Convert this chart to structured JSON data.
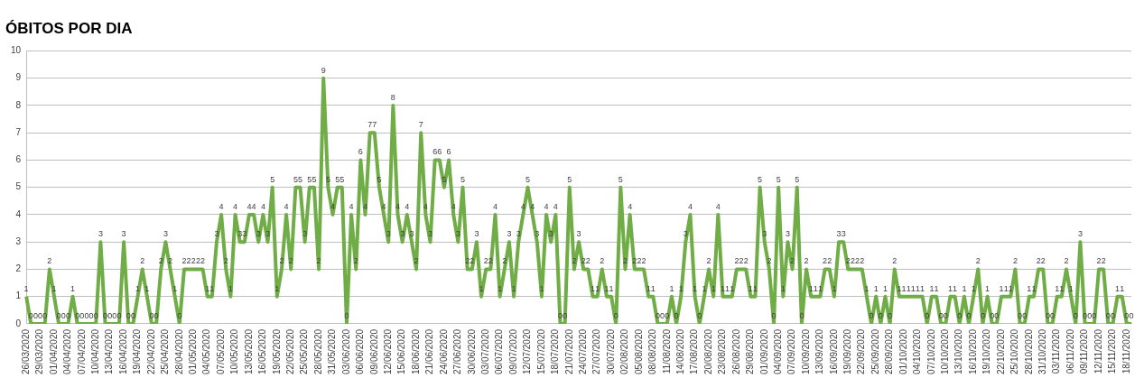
{
  "chart_data": {
    "type": "line",
    "title": "ÓBITOS POR DIA",
    "categories": [
      "26/03/2020",
      null,
      null,
      "29/03/2020",
      null,
      null,
      "01/04/2020",
      null,
      null,
      "04/04/2020",
      null,
      null,
      "07/04/2020",
      null,
      null,
      "10/04/2020",
      null,
      null,
      "13/04/2020",
      null,
      null,
      "16/04/2020",
      null,
      null,
      "19/04/2020",
      null,
      null,
      "22/04/2020",
      null,
      null,
      "25/04/2020",
      null,
      null,
      "28/04/2020",
      null,
      null,
      "01/05/2020",
      null,
      null,
      "04/05/2020",
      null,
      null,
      "07/05/2020",
      null,
      null,
      "10/05/2020",
      null,
      null,
      "13/05/2020",
      null,
      null,
      "16/05/2020",
      null,
      null,
      "19/05/2020",
      null,
      null,
      "22/05/2020",
      null,
      null,
      "25/05/2020",
      null,
      null,
      "28/05/2020",
      null,
      null,
      "31/05/2020",
      null,
      null,
      "03/06/2020",
      null,
      null,
      "06/06/2020",
      null,
      null,
      "09/06/2020",
      null,
      null,
      "12/06/2020",
      null,
      null,
      "15/06/2020",
      null,
      null,
      "18/06/2020",
      null,
      null,
      "21/06/2020",
      null,
      null,
      "24/06/2020",
      null,
      null,
      "27/06/2020",
      null,
      null,
      "30/06/2020",
      null,
      null,
      "03/07/2020",
      null,
      null,
      "06/07/2020",
      null,
      null,
      "09/07/2020",
      null,
      null,
      "12/07/2020",
      null,
      null,
      "15/07/2020",
      null,
      null,
      "18/07/2020",
      null,
      null,
      "21/07/2020",
      null,
      null,
      "24/07/2020",
      null,
      null,
      "27/07/2020",
      null,
      null,
      "30/07/2020",
      null,
      null,
      "02/08/2020",
      null,
      null,
      "05/08/2020",
      null,
      null,
      "08/08/2020",
      null,
      null,
      "11/08/2020",
      null,
      null,
      "14/08/2020",
      null,
      null,
      "17/08/2020",
      null,
      null,
      "20/08/2020",
      null,
      null,
      "23/08/2020",
      null,
      null,
      "26/08/2020",
      null,
      null,
      "29/08/2020",
      null,
      null,
      "01/09/2020",
      null,
      null,
      "04/09/2020",
      null,
      null,
      "07/09/2020",
      null,
      null,
      "10/09/2020",
      null,
      null,
      "13/09/2020",
      null,
      null,
      "16/09/2020",
      null,
      null,
      "19/09/2020",
      null,
      null,
      "22/09/2020",
      null,
      null,
      "25/09/2020",
      null,
      null,
      "28/09/2020",
      null,
      null,
      "01/10/2020",
      null,
      null,
      "04/10/2020",
      null,
      null,
      "07/10/2020",
      null,
      null,
      "10/10/2020",
      null,
      null,
      "13/10/2020",
      null,
      null,
      "16/10/2020",
      null,
      null,
      "19/10/2020",
      null,
      null,
      "22/10/2020",
      null,
      null,
      "25/10/2020",
      null,
      null,
      "28/10/2020",
      null,
      null,
      "31/10/2020",
      null,
      null,
      "03/11/2020",
      null,
      null,
      "06/11/2020",
      null,
      null,
      "09/11/2020",
      null,
      null,
      "12/11/2020",
      null,
      null,
      "15/11/2020",
      null,
      null,
      "18/11/2020",
      null
    ],
    "values": [
      1,
      0,
      0,
      0,
      0,
      2,
      1,
      0,
      0,
      0,
      1,
      0,
      0,
      0,
      0,
      0,
      3,
      0,
      0,
      0,
      0,
      3,
      0,
      0,
      1,
      2,
      1,
      0,
      0,
      2,
      3,
      2,
      1,
      0,
      2,
      2,
      2,
      2,
      2,
      1,
      1,
      3,
      4,
      2,
      1,
      4,
      3,
      3,
      4,
      4,
      3,
      4,
      3,
      5,
      1,
      2,
      4,
      2,
      5,
      5,
      3,
      5,
      5,
      2,
      9,
      5,
      4,
      5,
      5,
      0,
      4,
      2,
      6,
      4,
      7,
      7,
      5,
      4,
      3,
      8,
      4,
      3,
      4,
      3,
      2,
      7,
      4,
      3,
      6,
      6,
      5,
      6,
      4,
      3,
      5,
      2,
      2,
      3,
      1,
      2,
      2,
      4,
      1,
      2,
      3,
      1,
      3,
      4,
      5,
      4,
      3,
      1,
      4,
      3,
      4,
      0,
      0,
      5,
      2,
      3,
      2,
      2,
      1,
      1,
      2,
      1,
      1,
      0,
      5,
      2,
      4,
      2,
      2,
      2,
      1,
      1,
      0,
      0,
      0,
      1,
      0,
      1,
      3,
      4,
      1,
      0,
      1,
      2,
      1,
      4,
      1,
      1,
      1,
      2,
      2,
      2,
      1,
      1,
      5,
      3,
      2,
      0,
      5,
      1,
      3,
      2,
      5,
      0,
      2,
      1,
      1,
      1,
      2,
      2,
      1,
      3,
      3,
      2,
      2,
      2,
      2,
      1,
      0,
      1,
      0,
      1,
      0,
      2,
      1,
      1,
      1,
      1,
      1,
      1,
      0,
      1,
      1,
      0,
      0,
      1,
      1,
      0,
      1,
      0,
      1,
      2,
      0,
      1,
      0,
      0,
      1,
      1,
      1,
      2,
      0,
      0,
      1,
      1,
      2,
      2,
      0,
      0,
      1,
      1,
      2,
      1,
      0,
      3,
      0,
      0,
      0,
      2,
      2,
      0,
      0,
      1,
      1,
      0,
      0
    ],
    "color": "#70ad47",
    "ylim": [
      0,
      10
    ],
    "yticks": [
      0,
      1,
      2,
      3,
      4,
      5,
      6,
      7,
      8,
      9,
      10
    ],
    "grid": "y",
    "marker": "none",
    "data_labels": true
  }
}
